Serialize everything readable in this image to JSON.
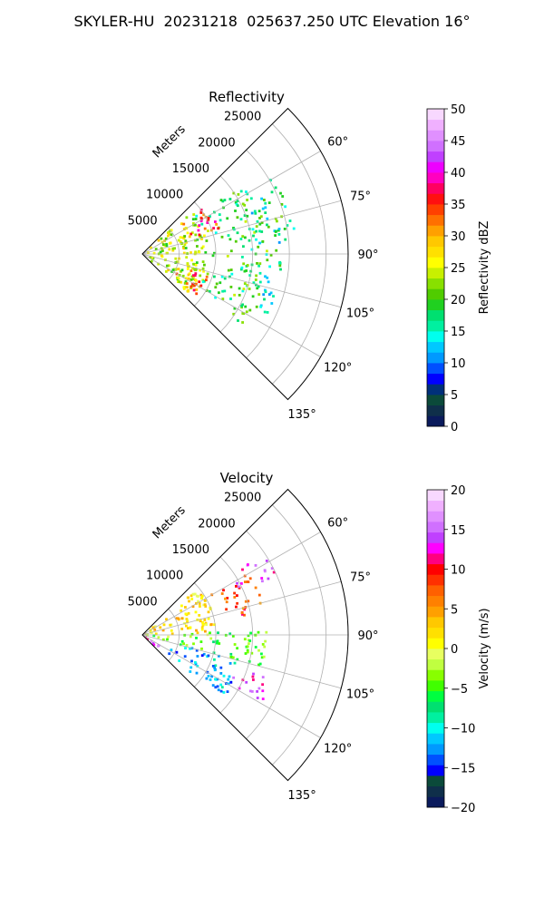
{
  "figure": {
    "title": "SKYLER-HU  20231218  025637.250 UTC Elevation 16°"
  },
  "chart_data": [
    {
      "type": "heatmap",
      "subtype": "polar-ppi-sector",
      "title": "Reflectivity",
      "radial_axis_label": "Meters",
      "radial_ticks": [
        5000,
        10000,
        15000,
        20000,
        25000
      ],
      "radial_tick_labels": [
        "5000",
        "10000",
        "15000",
        "20000",
        "25000"
      ],
      "range_max_m": 28000,
      "azimuth_range_deg": [
        45,
        135
      ],
      "azimuth_ticks": [
        60,
        75,
        90,
        105,
        120,
        135
      ],
      "azimuth_tick_labels": [
        "60°",
        "75°",
        "90°",
        "105°",
        "120°",
        "135°"
      ],
      "grid": true,
      "colorbar": {
        "label": "Reflectivity dBZ",
        "vmin": 0,
        "vmax": 50,
        "ticks": [
          "0",
          "5",
          "10",
          "15",
          "20",
          "25",
          "30",
          "35",
          "40",
          "45",
          "50"
        ],
        "colors": [
          "#0a1a5c",
          "#0f2f4a",
          "#0b4a3a",
          "#00307a",
          "#0000ff",
          "#0050ff",
          "#0099ff",
          "#00c8ff",
          "#00ffee",
          "#00f0a0",
          "#00e070",
          "#20d020",
          "#50cc00",
          "#88e000",
          "#c8f000",
          "#ffff00",
          "#ffe000",
          "#ffc800",
          "#ffa000",
          "#ff7000",
          "#ff4000",
          "#ff1010",
          "#ff0060",
          "#ff00c0",
          "#ee00ff",
          "#c040ff",
          "#d070ff",
          "#e090ff",
          "#f0b0ff",
          "#f8d8ff"
        ]
      },
      "echo_regions": [
        {
          "az_from": 50,
          "az_to": 130,
          "r_from": 0,
          "r_to": 9000,
          "dbz": 24
        },
        {
          "az_from": 55,
          "az_to": 125,
          "r_from": 8000,
          "r_to": 17000,
          "dbz": 19
        },
        {
          "az_from": 52,
          "az_to": 72,
          "r_from": 6000,
          "r_to": 11000,
          "dbz": 35
        },
        {
          "az_from": 108,
          "az_to": 128,
          "r_from": 5000,
          "r_to": 9500,
          "dbz": 34
        },
        {
          "az_from": 65,
          "az_to": 118,
          "r_from": 15000,
          "r_to": 19000,
          "dbz": 16
        },
        {
          "az_from": 60,
          "az_to": 85,
          "r_from": 18000,
          "r_to": 21000,
          "dbz": 18
        }
      ]
    },
    {
      "type": "heatmap",
      "subtype": "polar-ppi-sector",
      "title": "Velocity",
      "radial_axis_label": "Meters",
      "radial_ticks": [
        5000,
        10000,
        15000,
        20000,
        25000
      ],
      "radial_tick_labels": [
        "5000",
        "10000",
        "15000",
        "20000",
        "25000"
      ],
      "range_max_m": 28000,
      "azimuth_range_deg": [
        45,
        135
      ],
      "azimuth_ticks": [
        60,
        75,
        90,
        105,
        120,
        135
      ],
      "azimuth_tick_labels": [
        "60°",
        "75°",
        "90°",
        "105°",
        "120°",
        "135°"
      ],
      "grid": true,
      "colorbar": {
        "label": "Velocity (m/s)",
        "vmin": -20,
        "vmax": 20,
        "ticks": [
          "−20",
          "−15",
          "−10",
          "−5",
          "0",
          "5",
          "10",
          "15",
          "20"
        ],
        "colors": [
          "#0a1a5c",
          "#0f2f4a",
          "#0b4a3a",
          "#0000ff",
          "#0050ff",
          "#0099ff",
          "#00c8ff",
          "#00ffee",
          "#00f0a0",
          "#00e070",
          "#00ff40",
          "#40ff00",
          "#88ff00",
          "#c0ff40",
          "#e8ff60",
          "#ffff00",
          "#ffe000",
          "#ffc800",
          "#ffa000",
          "#ff8000",
          "#ff6000",
          "#ff3000",
          "#ff0000",
          "#ff0080",
          "#ff00ff",
          "#c040ff",
          "#d070ff",
          "#e090ff",
          "#f0b0ff",
          "#f8d8ff"
        ]
      },
      "echo_regions": [
        {
          "az_from": 50,
          "az_to": 88,
          "r_from": 0,
          "r_to": 10000,
          "vel": 2
        },
        {
          "az_from": 60,
          "az_to": 80,
          "r_from": 10000,
          "r_to": 17000,
          "vel": 8
        },
        {
          "az_from": 55,
          "az_to": 66,
          "r_from": 14000,
          "r_to": 20000,
          "vel": 14
        },
        {
          "az_from": 88,
          "az_to": 105,
          "r_from": 0,
          "r_to": 17000,
          "vel": -4
        },
        {
          "az_from": 105,
          "az_to": 128,
          "r_from": 3000,
          "r_to": 14000,
          "vel": -12
        },
        {
          "az_from": 108,
          "az_to": 120,
          "r_from": 13000,
          "r_to": 19000,
          "vel": 14
        },
        {
          "az_from": 122,
          "az_to": 132,
          "r_from": 0,
          "r_to": 3000,
          "vel": 14
        }
      ]
    }
  ]
}
